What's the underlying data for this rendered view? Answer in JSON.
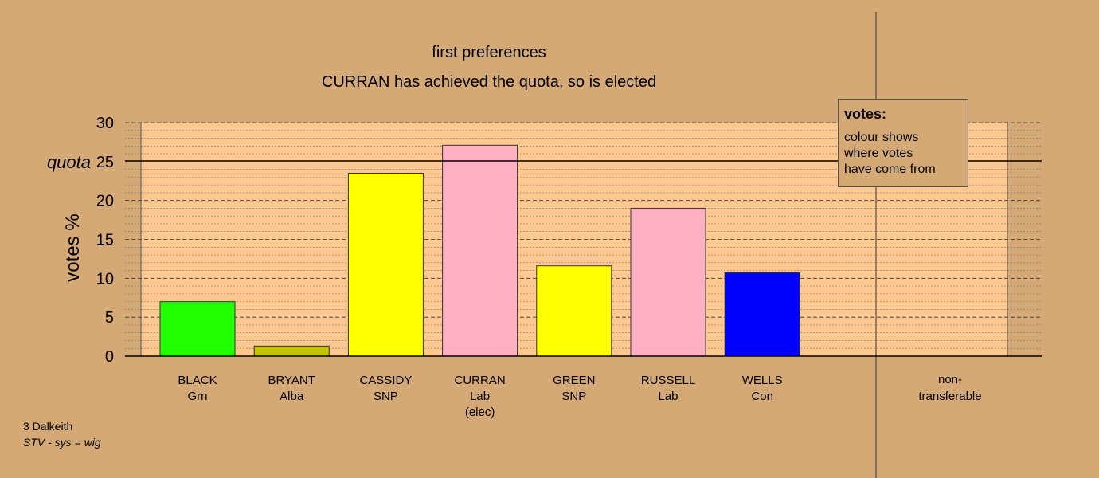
{
  "chart_data": {
    "type": "bar",
    "title": "first preferences",
    "subtitle": "CURRAN has achieved the quota, so is elected",
    "ylabel": "votes %",
    "ylim": [
      0,
      30
    ],
    "yticks": [
      "0",
      "5",
      "10",
      "15",
      "20",
      "25",
      "30"
    ],
    "quota_label": "quota",
    "quota_value": 25,
    "categories": [
      {
        "name": "BLACK",
        "party": "Grn",
        "note": "",
        "value": 7.0,
        "color": "#22ff00"
      },
      {
        "name": "BRYANT",
        "party": "Alba",
        "note": "",
        "value": 1.3,
        "color": "#c3c400"
      },
      {
        "name": "CASSIDY",
        "party": "SNP",
        "note": "",
        "value": 23.5,
        "color": "#ffff00"
      },
      {
        "name": "CURRAN",
        "party": "Lab",
        "note": "(elec)",
        "value": 27.1,
        "color": "#ffb0c4"
      },
      {
        "name": "GREEN",
        "party": "SNP",
        "note": "",
        "value": 11.6,
        "color": "#ffff00"
      },
      {
        "name": "RUSSELL",
        "party": "Lab",
        "note": "",
        "value": 19.0,
        "color": "#ffb0c4"
      },
      {
        "name": "WELLS",
        "party": "Con",
        "note": "",
        "value": 10.7,
        "color": "#0000ff"
      }
    ],
    "nontransferable": {
      "line1": "non-",
      "line2": "transferable",
      "value": 0
    },
    "legend": {
      "title": "votes:",
      "lines": [
        "colour shows",
        "where votes",
        "have come from"
      ]
    },
    "grid": true
  },
  "footer": {
    "ward": "3 Dalkeith",
    "system": "STV - sys = wig"
  },
  "colors": {
    "background": "#d4a976",
    "plot_area": "#ffc890"
  }
}
